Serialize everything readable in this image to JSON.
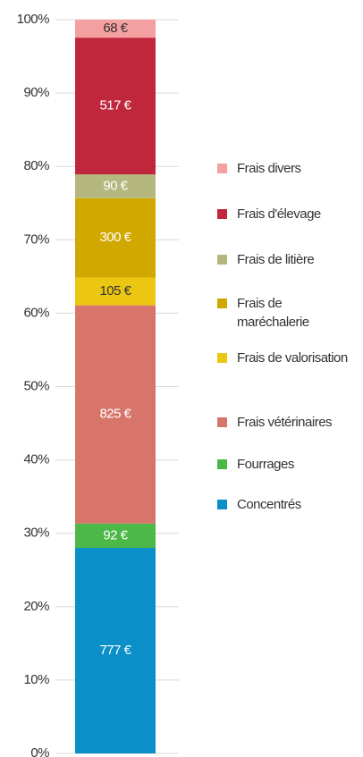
{
  "chart_data": {
    "type": "stacked_percent_bar",
    "categories": [
      null
    ],
    "series": [
      {
        "name": "Concentrés",
        "color": "#0a8fc8",
        "label_color": "#ffffff",
        "values": [
          777
        ],
        "value_labels": [
          "777 €"
        ]
      },
      {
        "name": "Fourrages",
        "color": "#4cb848",
        "label_color": "#ffffff",
        "values": [
          92
        ],
        "value_labels": [
          "92 €"
        ]
      },
      {
        "name": "Frais vétérinaires",
        "color": "#d8756b",
        "label_color": "#ffffff",
        "values": [
          825
        ],
        "value_labels": [
          "825 €"
        ]
      },
      {
        "name": "Frais de valorisation",
        "color": "#ebc712",
        "label_color": "#333333",
        "values": [
          105
        ],
        "value_labels": [
          "105 €"
        ]
      },
      {
        "name": "Frais de maréchalerie",
        "color": "#d0a800",
        "label_color": "#ffffff",
        "values": [
          300
        ],
        "value_labels": [
          "300 €"
        ]
      },
      {
        "name": "Frais de litière",
        "color": "#b5b87e",
        "label_color": "#ffffff",
        "values": [
          90
        ],
        "value_labels": [
          "90 €"
        ]
      },
      {
        "name": "Frais d'élevage",
        "color": "#c0273d",
        "label_color": "#ffffff",
        "values": [
          517
        ],
        "value_labels": [
          "517 €"
        ]
      },
      {
        "name": "Frais divers",
        "color": "#f4a0a0",
        "label_color": "#333333",
        "values": [
          68
        ],
        "value_labels": [
          "68 €"
        ]
      }
    ],
    "ylim": [
      0,
      100
    ],
    "yticks": [
      {
        "value": 0,
        "label": "0%"
      },
      {
        "value": 10,
        "label": "10%"
      },
      {
        "value": 20,
        "label": "20%"
      },
      {
        "value": 30,
        "label": "30%"
      },
      {
        "value": 40,
        "label": "40%"
      },
      {
        "value": 50,
        "label": "50%"
      },
      {
        "value": 60,
        "label": "60%"
      },
      {
        "value": 70,
        "label": "70%"
      },
      {
        "value": 80,
        "label": "80%"
      },
      {
        "value": 90,
        "label": "90%"
      },
      {
        "value": 100,
        "label": "100%"
      }
    ],
    "grid": true,
    "legend": "right"
  }
}
